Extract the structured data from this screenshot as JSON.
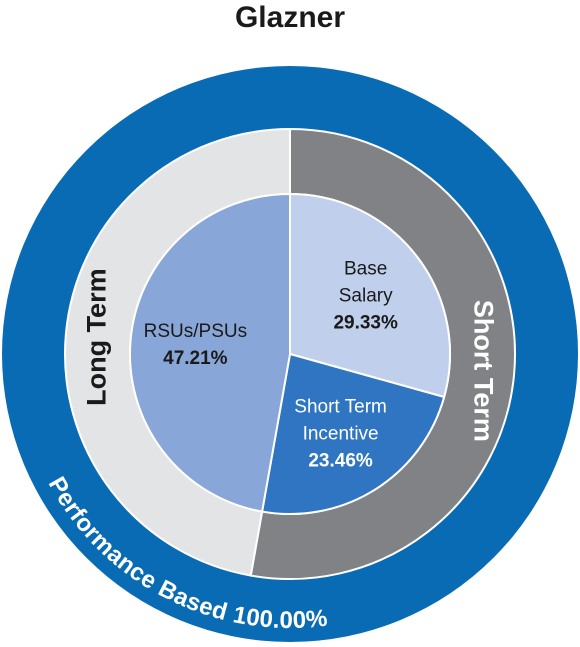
{
  "chart_data": {
    "type": "nested-pie",
    "title": "Glazner",
    "outer": {
      "name": "Performance Based",
      "value": 100,
      "value_label": "100.00%",
      "color": "#0a6bb5"
    },
    "groups": [
      {
        "name": "Short Term",
        "color": "#808285",
        "categories": [
          [
            "Base",
            "Salary"
          ],
          [
            "Short Term",
            "Incentive"
          ]
        ],
        "values": [
          29.33,
          23.46
        ],
        "value_labels": [
          "29.33%",
          "23.46%"
        ],
        "colors": [
          "#c0cfeb",
          "#2f75c1"
        ]
      },
      {
        "name": "Long Term",
        "color": "#e3e4e6",
        "categories": [
          [
            "RSUs/PSUs"
          ]
        ],
        "values": [
          47.21
        ],
        "value_labels": [
          "47.21%"
        ],
        "colors": [
          "#88a6d7"
        ]
      }
    ]
  }
}
